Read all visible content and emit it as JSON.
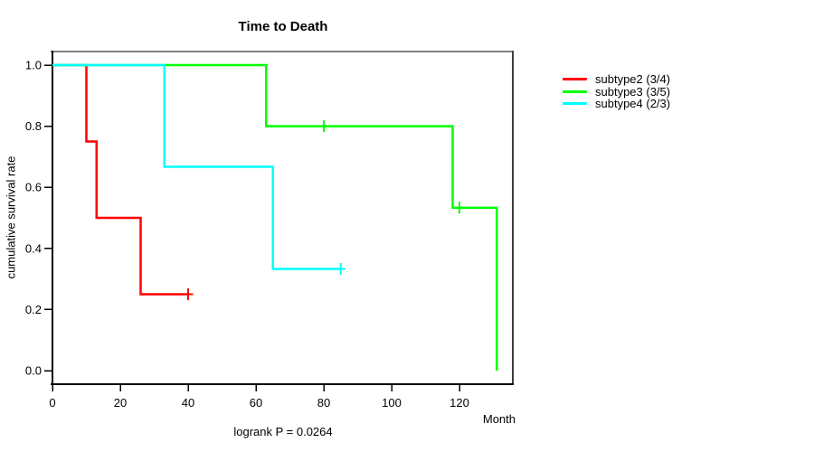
{
  "chart_data": {
    "type": "line",
    "variant": "kaplan-meier-step-curve",
    "title": "Time to Death",
    "xlabel": "Month",
    "ylabel": "cumulative survival rate",
    "footnote": "logrank P = 0.0264",
    "x_ticks": [
      0,
      20,
      40,
      60,
      80,
      100,
      120
    ],
    "y_ticks": [
      1.0,
      0.8,
      0.6,
      0.4,
      0.2,
      0.0
    ],
    "xlim": [
      0,
      136
    ],
    "ylim": [
      0.0,
      1.0
    ],
    "grid": false,
    "legend_position": "right-outside",
    "frame_colors": {
      "top": "#808080",
      "right": "#3c3c3c",
      "bottom": "#000000",
      "left": "#000000"
    },
    "series": [
      {
        "name": "subtype2 (3/4)",
        "color": "#ff0000",
        "steps": [
          [
            0,
            1.0
          ],
          [
            10,
            1.0
          ],
          [
            10,
            0.75
          ],
          [
            13,
            0.75
          ],
          [
            13,
            0.5
          ],
          [
            26,
            0.5
          ],
          [
            26,
            0.25
          ],
          [
            40,
            0.25
          ]
        ],
        "censored": [
          [
            40,
            0.25
          ]
        ]
      },
      {
        "name": "subtype3 (3/5)",
        "color": "#00ff00",
        "steps": [
          [
            0,
            1.0
          ],
          [
            63,
            1.0
          ],
          [
            63,
            0.8
          ],
          [
            118,
            0.8
          ],
          [
            118,
            0.533
          ],
          [
            131,
            0.533
          ],
          [
            131,
            0.0
          ]
        ],
        "censored": [
          [
            80,
            0.8
          ],
          [
            120,
            0.533
          ]
        ]
      },
      {
        "name": "subtype4 (2/3)",
        "color": "#00ffff",
        "steps": [
          [
            0,
            1.0
          ],
          [
            33,
            1.0
          ],
          [
            33,
            0.667
          ],
          [
            65,
            0.667
          ],
          [
            65,
            0.333
          ],
          [
            85,
            0.333
          ]
        ],
        "censored": [
          [
            85,
            0.333
          ]
        ]
      }
    ]
  }
}
